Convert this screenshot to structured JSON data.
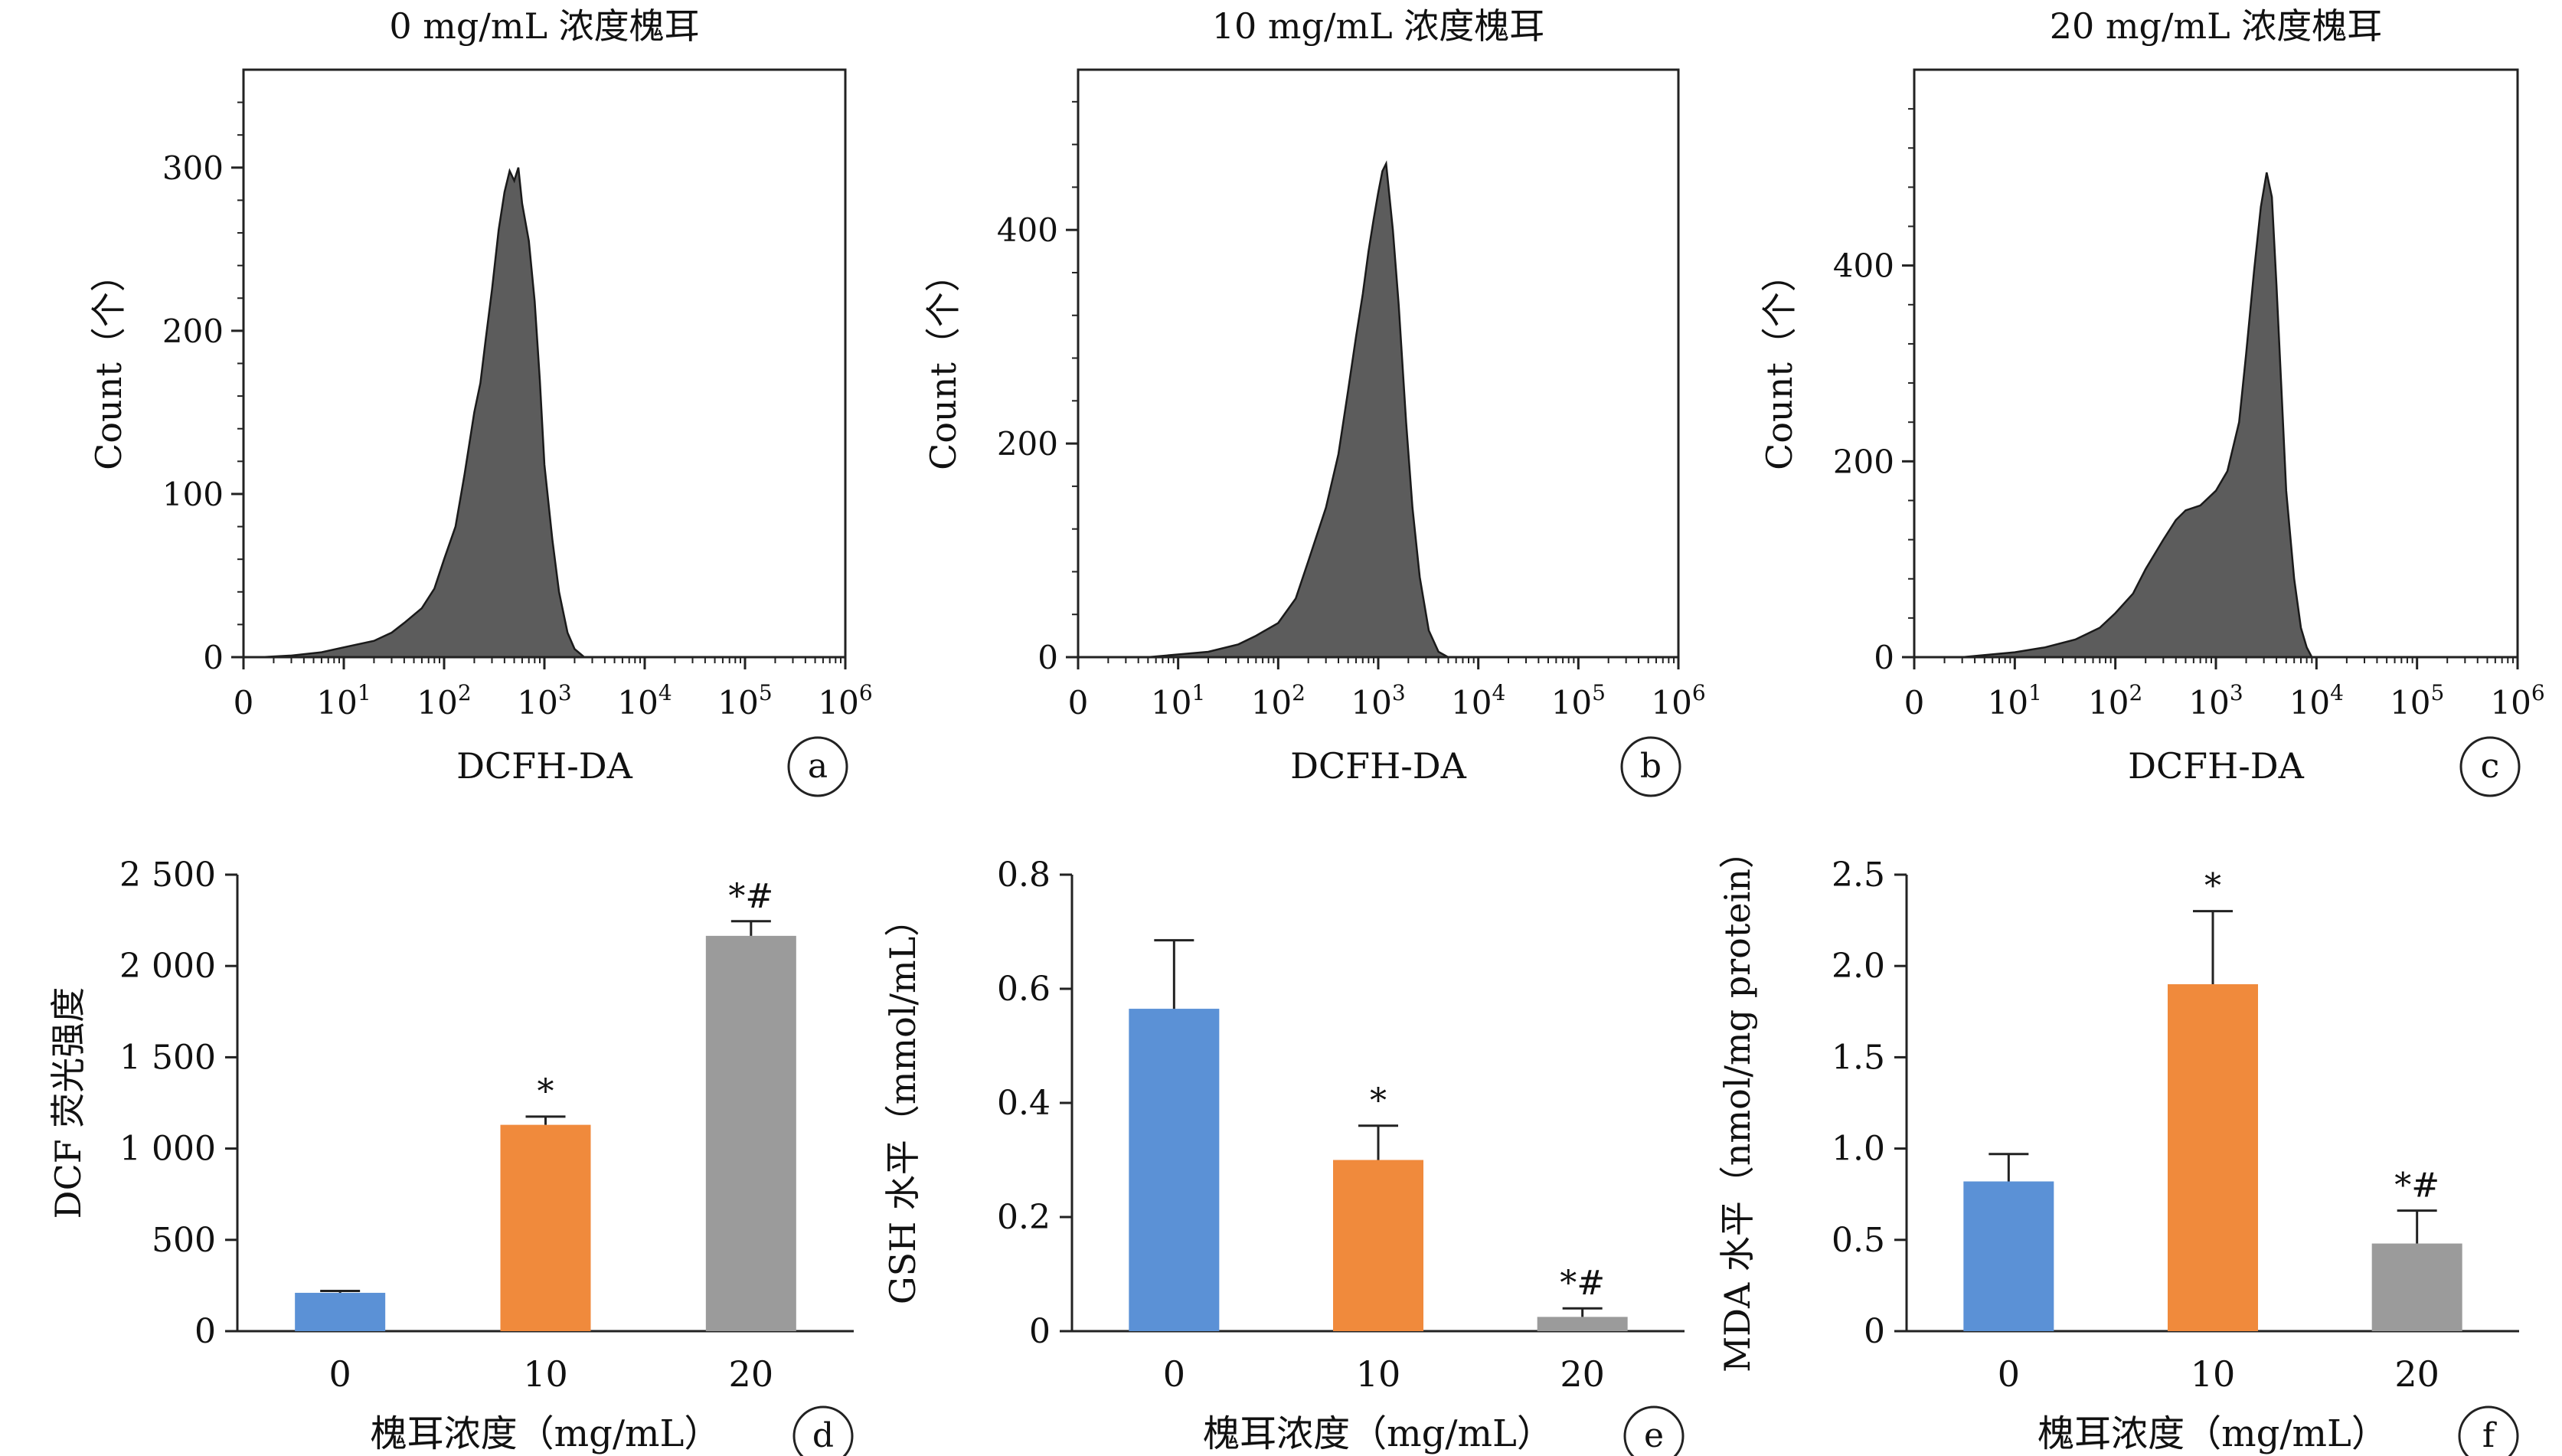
{
  "chart_data": [
    {
      "panel": "a",
      "type": "area",
      "title": "0 mg/mL 浓度槐耳",
      "xlabel": "DCFH-DA",
      "ylabel": "Count（个）",
      "x_scale": "log",
      "xlim": [
        1,
        1000000
      ],
      "ylim": [
        0,
        360
      ],
      "x_ticks": [
        {
          "value": 1,
          "base": "0",
          "exp": ""
        },
        {
          "value": 10,
          "base": "10",
          "exp": "1"
        },
        {
          "value": 100,
          "base": "10",
          "exp": "2"
        },
        {
          "value": 1000,
          "base": "10",
          "exp": "3"
        },
        {
          "value": 10000,
          "base": "10",
          "exp": "4"
        },
        {
          "value": 100000,
          "base": "10",
          "exp": "5"
        },
        {
          "value": 1000000,
          "base": "10",
          "exp": "6"
        }
      ],
      "y_ticks": [
        0,
        100,
        200,
        300
      ],
      "x": [
        1.5,
        3,
        6,
        10,
        20,
        30,
        40,
        60,
        80,
        100,
        130,
        160,
        200,
        230,
        260,
        300,
        350,
        400,
        450,
        500,
        550,
        600,
        700,
        800,
        900,
        1000,
        1200,
        1400,
        1700,
        2000,
        2500
      ],
      "y": [
        0,
        1,
        3,
        6,
        10,
        15,
        21,
        30,
        42,
        60,
        80,
        112,
        150,
        168,
        195,
        225,
        262,
        285,
        298,
        292,
        300,
        278,
        255,
        218,
        170,
        118,
        72,
        40,
        15,
        5,
        0
      ]
    },
    {
      "panel": "b",
      "type": "area",
      "title": "10 mg/mL 浓度槐耳",
      "xlabel": "DCFH-DA",
      "ylabel": "Count（个）",
      "x_scale": "log",
      "xlim": [
        1,
        1000000
      ],
      "ylim": [
        0,
        550
      ],
      "x_ticks": [
        {
          "value": 1,
          "base": "0",
          "exp": ""
        },
        {
          "value": 10,
          "base": "10",
          "exp": "1"
        },
        {
          "value": 100,
          "base": "10",
          "exp": "2"
        },
        {
          "value": 1000,
          "base": "10",
          "exp": "3"
        },
        {
          "value": 10000,
          "base": "10",
          "exp": "4"
        },
        {
          "value": 100000,
          "base": "10",
          "exp": "5"
        },
        {
          "value": 1000000,
          "base": "10",
          "exp": "6"
        }
      ],
      "y_ticks": [
        0,
        200,
        400
      ],
      "x": [
        5,
        20,
        40,
        60,
        100,
        150,
        200,
        300,
        400,
        500,
        600,
        700,
        800,
        900,
        1000,
        1100,
        1200,
        1400,
        1600,
        1900,
        2200,
        2600,
        3200,
        4000,
        5000
      ],
      "y": [
        0,
        5,
        12,
        20,
        32,
        55,
        90,
        140,
        190,
        250,
        300,
        340,
        380,
        410,
        435,
        455,
        462,
        400,
        330,
        220,
        140,
        75,
        25,
        5,
        0
      ]
    },
    {
      "panel": "c",
      "type": "area",
      "title": "20 mg/mL 浓度槐耳",
      "xlabel": "DCFH-DA",
      "ylabel": "Count（个）",
      "x_scale": "log",
      "xlim": [
        1,
        1000000
      ],
      "ylim": [
        0,
        600
      ],
      "x_ticks": [
        {
          "value": 1,
          "base": "0",
          "exp": ""
        },
        {
          "value": 10,
          "base": "10",
          "exp": "1"
        },
        {
          "value": 100,
          "base": "10",
          "exp": "2"
        },
        {
          "value": 1000,
          "base": "10",
          "exp": "3"
        },
        {
          "value": 10000,
          "base": "10",
          "exp": "4"
        },
        {
          "value": 100000,
          "base": "10",
          "exp": "5"
        },
        {
          "value": 1000000,
          "base": "10",
          "exp": "6"
        }
      ],
      "y_ticks": [
        0,
        200,
        400
      ],
      "x": [
        3,
        10,
        20,
        40,
        70,
        100,
        150,
        200,
        300,
        400,
        500,
        700,
        1000,
        1300,
        1700,
        2000,
        2400,
        2800,
        3200,
        3600,
        4000,
        4500,
        5000,
        6000,
        7000,
        8000,
        9000
      ],
      "y": [
        0,
        5,
        10,
        18,
        30,
        45,
        65,
        90,
        120,
        140,
        150,
        155,
        170,
        190,
        240,
        310,
        395,
        460,
        495,
        470,
        380,
        270,
        170,
        80,
        30,
        10,
        0
      ]
    },
    {
      "panel": "d",
      "type": "bar",
      "categories": [
        "0",
        "10",
        "20"
      ],
      "values": [
        210,
        1130,
        2165
      ],
      "errors": [
        10,
        45,
        80
      ],
      "annotations": [
        "",
        "*",
        "*#"
      ],
      "colors": [
        "#5b91d6",
        "#f08a3c",
        "#9b9b9b"
      ],
      "ylim": [
        0,
        2500
      ],
      "y_ticks": [
        0,
        500,
        1000,
        1500,
        2000,
        2500
      ],
      "y_tick_labels": [
        "0",
        "500",
        "1 000",
        "1 500",
        "2 000",
        "2 500"
      ],
      "xlabel": "槐耳浓度（mg/mL）",
      "ylabel": "DCF 荧光强度"
    },
    {
      "panel": "e",
      "type": "bar",
      "categories": [
        "0",
        "10",
        "20"
      ],
      "values": [
        0.565,
        0.3,
        0.025
      ],
      "errors": [
        0.12,
        0.06,
        0.015
      ],
      "annotations": [
        "",
        "*",
        "*#"
      ],
      "colors": [
        "#5b91d6",
        "#f08a3c",
        "#9b9b9b"
      ],
      "ylim": [
        0,
        0.8
      ],
      "y_ticks": [
        0,
        0.2,
        0.4,
        0.6,
        0.8
      ],
      "y_tick_labels": [
        "0",
        "0.2",
        "0.4",
        "0.6",
        "0.8"
      ],
      "xlabel": "槐耳浓度（mg/mL）",
      "ylabel": "GSH 水平（mmol/mL）"
    },
    {
      "panel": "f",
      "type": "bar",
      "categories": [
        "0",
        "10",
        "20"
      ],
      "values": [
        0.82,
        1.9,
        0.48
      ],
      "errors": [
        0.15,
        0.4,
        0.18
      ],
      "annotations": [
        "",
        "*",
        "*#"
      ],
      "colors": [
        "#5b91d6",
        "#f08a3c",
        "#9b9b9b"
      ],
      "ylim": [
        0,
        2.5
      ],
      "y_ticks": [
        0,
        0.5,
        1.0,
        1.5,
        2.0,
        2.5
      ],
      "y_tick_labels": [
        "0",
        "0.5",
        "1.0",
        "1.5",
        "2.0",
        "2.5"
      ],
      "xlabel": "槐耳浓度（mg/mL）",
      "ylabel": "MDA 水平（nmol/mg protein）"
    }
  ]
}
